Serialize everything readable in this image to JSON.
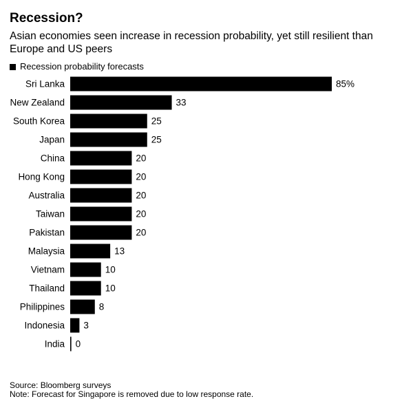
{
  "chart_data": {
    "type": "bar",
    "orientation": "horizontal",
    "title": "Recession?",
    "subtitle": "Asian economies seen increase in recession probability, yet still resilient than Europe and US peers",
    "legend": {
      "position": "top-left",
      "entries": [
        "Recession probability forecasts"
      ]
    },
    "series": [
      {
        "name": "Recession probability forecasts",
        "color": "#000000"
      }
    ],
    "categories": [
      "Sri Lanka",
      "New Zealand",
      "South Korea",
      "Japan",
      "China",
      "Hong Kong",
      "Australia",
      "Taiwan",
      "Pakistan",
      "Malaysia",
      "Vietnam",
      "Thailand",
      "Philippines",
      "Indonesia",
      "India"
    ],
    "values": [
      85,
      33,
      25,
      25,
      20,
      20,
      20,
      20,
      20,
      13,
      10,
      10,
      8,
      3,
      0
    ],
    "data_labels": [
      "85%",
      "33",
      "25",
      "25",
      "20",
      "20",
      "20",
      "20",
      "20",
      "13",
      "10",
      "10",
      "8",
      "3",
      "0"
    ],
    "xlim": [
      0,
      100
    ],
    "grid": false,
    "bar_color": "#000000"
  },
  "footer": {
    "source": "Source: Bloomberg surveys",
    "note": "Note: Forecast for Singapore is removed due to low response rate."
  }
}
